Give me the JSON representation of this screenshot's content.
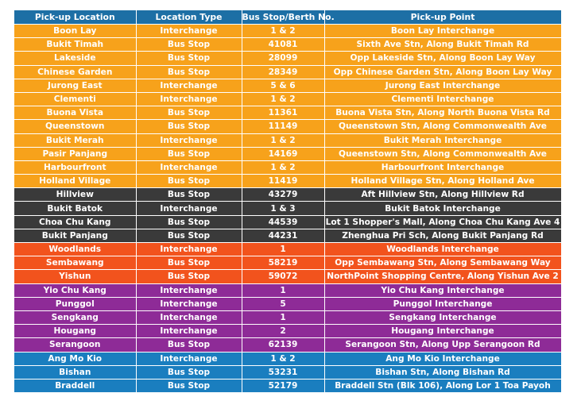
{
  "colors": {
    "header": "#1d6fa5",
    "orange": "#f7a21b",
    "dark": "#3a3a3a",
    "red": "#f2531d",
    "purple": "#8e2b97",
    "blue": "#1a7ebf"
  },
  "headers": [
    "Pick-up Location",
    "Location Type",
    "Bus Stop/Berth No.",
    "Pick-up Point"
  ],
  "rows": [
    {
      "group": "orange",
      "cells": [
        "Boon Lay",
        "Interchange",
        "1 & 2",
        "Boon Lay Interchange"
      ]
    },
    {
      "group": "orange",
      "cells": [
        "Bukit Timah",
        "Bus Stop",
        "41081",
        "Sixth Ave Stn, Along Bukit Timah Rd"
      ]
    },
    {
      "group": "orange",
      "cells": [
        "Lakeside",
        "Bus Stop",
        "28099",
        "Opp Lakeside Stn, Along Boon Lay Way"
      ]
    },
    {
      "group": "orange",
      "cells": [
        "Chinese Garden",
        "Bus Stop",
        "28349",
        "Opp Chinese Garden Stn, Along Boon Lay Way"
      ]
    },
    {
      "group": "orange",
      "cells": [
        "Jurong East",
        "Interchange",
        "5 & 6",
        "Jurong East Interchange"
      ]
    },
    {
      "group": "orange",
      "cells": [
        "Clementi",
        "Interchange",
        "1 & 2",
        "Clementi Interchange"
      ]
    },
    {
      "group": "orange",
      "cells": [
        "Buona Vista",
        "Bus Stop",
        "11361",
        "Buona Vista Stn, Along North Buona Vista Rd"
      ]
    },
    {
      "group": "orange",
      "cells": [
        "Queenstown",
        "Bus Stop",
        "11149",
        "Queenstown Stn, Along Commonwealth Ave"
      ]
    },
    {
      "group": "orange",
      "cells": [
        "Bukit Merah",
        "Interchange",
        "1 & 2",
        "Bukit Merah Interchange"
      ]
    },
    {
      "group": "orange",
      "cells": [
        "Pasir Panjang",
        "Bus Stop",
        "14169",
        "Queenstown Stn, Along Commonwealth Ave"
      ]
    },
    {
      "group": "orange",
      "cells": [
        "Harbourfront",
        "Interchange",
        "1 & 2",
        "Harbourfront Interchange"
      ]
    },
    {
      "group": "orange",
      "cells": [
        "Holland Village",
        "Bus Stop",
        "11419",
        "Holland Village Stn, Along Holland Ave"
      ]
    },
    {
      "group": "dark",
      "cells": [
        "Hillview",
        "Bus Stop",
        "43279",
        "Aft Hillview Stn, Along Hillview Rd"
      ]
    },
    {
      "group": "dark",
      "cells": [
        "Bukit Batok",
        "Interchange",
        "1 & 3",
        "Bukit Batok Interchange"
      ]
    },
    {
      "group": "dark",
      "cells": [
        "Choa Chu Kang",
        "Bus Stop",
        "44539",
        "Lot 1 Shopper's Mall, Along Choa Chu Kang Ave 4"
      ]
    },
    {
      "group": "dark",
      "cells": [
        "Bukit Panjang",
        "Bus Stop",
        "44231",
        "Zhenghua Pri Sch, Along Bukit Panjang Rd"
      ]
    },
    {
      "group": "red",
      "cells": [
        "Woodlands",
        "Interchange",
        "1",
        "Woodlands Interchange"
      ]
    },
    {
      "group": "red",
      "cells": [
        "Sembawang",
        "Bus Stop",
        "58219",
        "Opp Sembawang Stn, Along Sembawang Way"
      ]
    },
    {
      "group": "red",
      "cells": [
        "Yishun",
        "Bus Stop",
        "59072",
        "NorthPoint Shopping Centre, Along Yishun Ave 2"
      ]
    },
    {
      "group": "purple",
      "cells": [
        "Yio Chu Kang",
        "Interchange",
        "1",
        "Yio Chu Kang Interchange"
      ]
    },
    {
      "group": "purple",
      "cells": [
        "Punggol",
        "Interchange",
        "5",
        "Punggol Interchange"
      ]
    },
    {
      "group": "purple",
      "cells": [
        "Sengkang",
        "Interchange",
        "1",
        "Sengkang Interchange"
      ]
    },
    {
      "group": "purple",
      "cells": [
        "Hougang",
        "Interchange",
        "2",
        "Hougang Interchange"
      ]
    },
    {
      "group": "purple",
      "cells": [
        "Serangoon",
        "Bus Stop",
        "62139",
        "Serangoon Stn, Along Upp Serangoon Rd"
      ]
    },
    {
      "group": "blue",
      "cells": [
        "Ang Mo Kio",
        "Interchange",
        "1 & 2",
        "Ang Mo Kio Interchange"
      ]
    },
    {
      "group": "blue",
      "cells": [
        "Bishan",
        "Bus Stop",
        "53231",
        "Bishan Stn, Along Bishan Rd"
      ]
    },
    {
      "group": "blue",
      "cells": [
        "Braddell",
        "Bus Stop",
        "52179",
        "Braddell Stn (Blk 106), Along Lor 1 Toa Payoh"
      ]
    }
  ]
}
